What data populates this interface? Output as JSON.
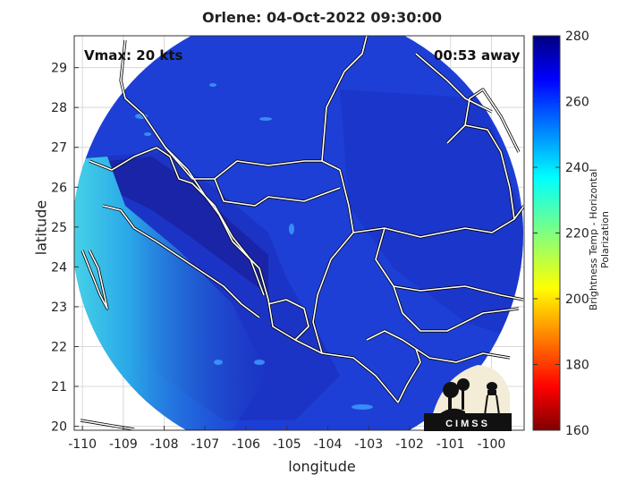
{
  "title": "Orlene: 04-Oct-2022 09:30:00",
  "annotations": {
    "vmax": "Vmax: 20 kts",
    "away": "00:53 away"
  },
  "axes": {
    "xlabel": "longitude",
    "ylabel": "latitude",
    "xticks": [
      "-110",
      "-109",
      "-108",
      "-107",
      "-106",
      "-105",
      "-104",
      "-103",
      "-102",
      "-101",
      "-100"
    ],
    "yticks": [
      "20",
      "21",
      "22",
      "23",
      "24",
      "25",
      "26",
      "27",
      "28",
      "29"
    ],
    "xlim": [
      -110.2,
      -99.2
    ],
    "ylim": [
      19.9,
      29.8
    ]
  },
  "colorbar": {
    "label": "Brightness Temp - Horizontal Polarization",
    "ticks": [
      "160",
      "180",
      "200",
      "220",
      "240",
      "260",
      "280"
    ],
    "range": [
      160,
      280
    ],
    "colormap": "jet"
  },
  "logo": {
    "text": "CIMSS"
  },
  "colors": {
    "deep_blue": "#1a23a8",
    "mid_blue": "#1f3fd8",
    "cyan": "#3fd6e6",
    "coast": "#ffffff"
  }
}
